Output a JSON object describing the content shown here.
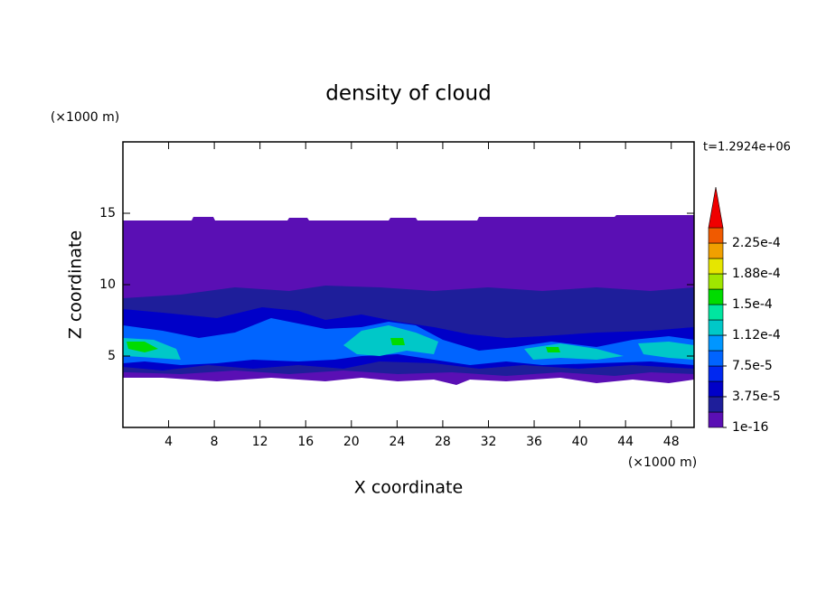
{
  "chart_data": {
    "type": "contour",
    "title": "density of cloud",
    "xlabel": "X coordinate",
    "ylabel": "Z coordinate",
    "xunit": "(×1000 m)",
    "yunit": "(×1000 m)",
    "annotation": "t=1.2924e+06",
    "xlim": [
      0,
      50
    ],
    "ylim": [
      0,
      20
    ],
    "xticks": [
      4,
      8,
      12,
      16,
      20,
      24,
      28,
      32,
      36,
      40,
      44,
      48
    ],
    "yticks": [
      5,
      10,
      15
    ],
    "colorbar": {
      "levels": [
        1e-16,
        1.875e-05,
        3.75e-05,
        5.625e-05,
        7.5e-05,
        9.375e-05,
        0.0001125,
        0.00013125,
        0.00015,
        0.00016875,
        0.0001875,
        0.00020625,
        0.000225
      ],
      "colors": [
        "#5a0fb4",
        "#1e1e9a",
        "#0000c8",
        "#0028f0",
        "#0064ff",
        "#0096ff",
        "#00c8c8",
        "#00e6a0",
        "#00dc00",
        "#a0e600",
        "#e6e600",
        "#f0a000",
        "#f05a00",
        "#f00000",
        "#f4a0a0"
      ],
      "ticks": [
        {
          "value": 1e-16,
          "label": "1e-16"
        },
        {
          "value": 3.75e-05,
          "label": "3.75e-5"
        },
        {
          "value": 7.5e-05,
          "label": "7.5e-5"
        },
        {
          "value": 0.0001125,
          "label": "1.12e-4"
        },
        {
          "value": 0.00015,
          "label": "1.5e-4"
        },
        {
          "value": 0.0001875,
          "label": "1.88e-4"
        },
        {
          "value": 0.000225,
          "label": "2.25e-4"
        }
      ]
    }
  }
}
